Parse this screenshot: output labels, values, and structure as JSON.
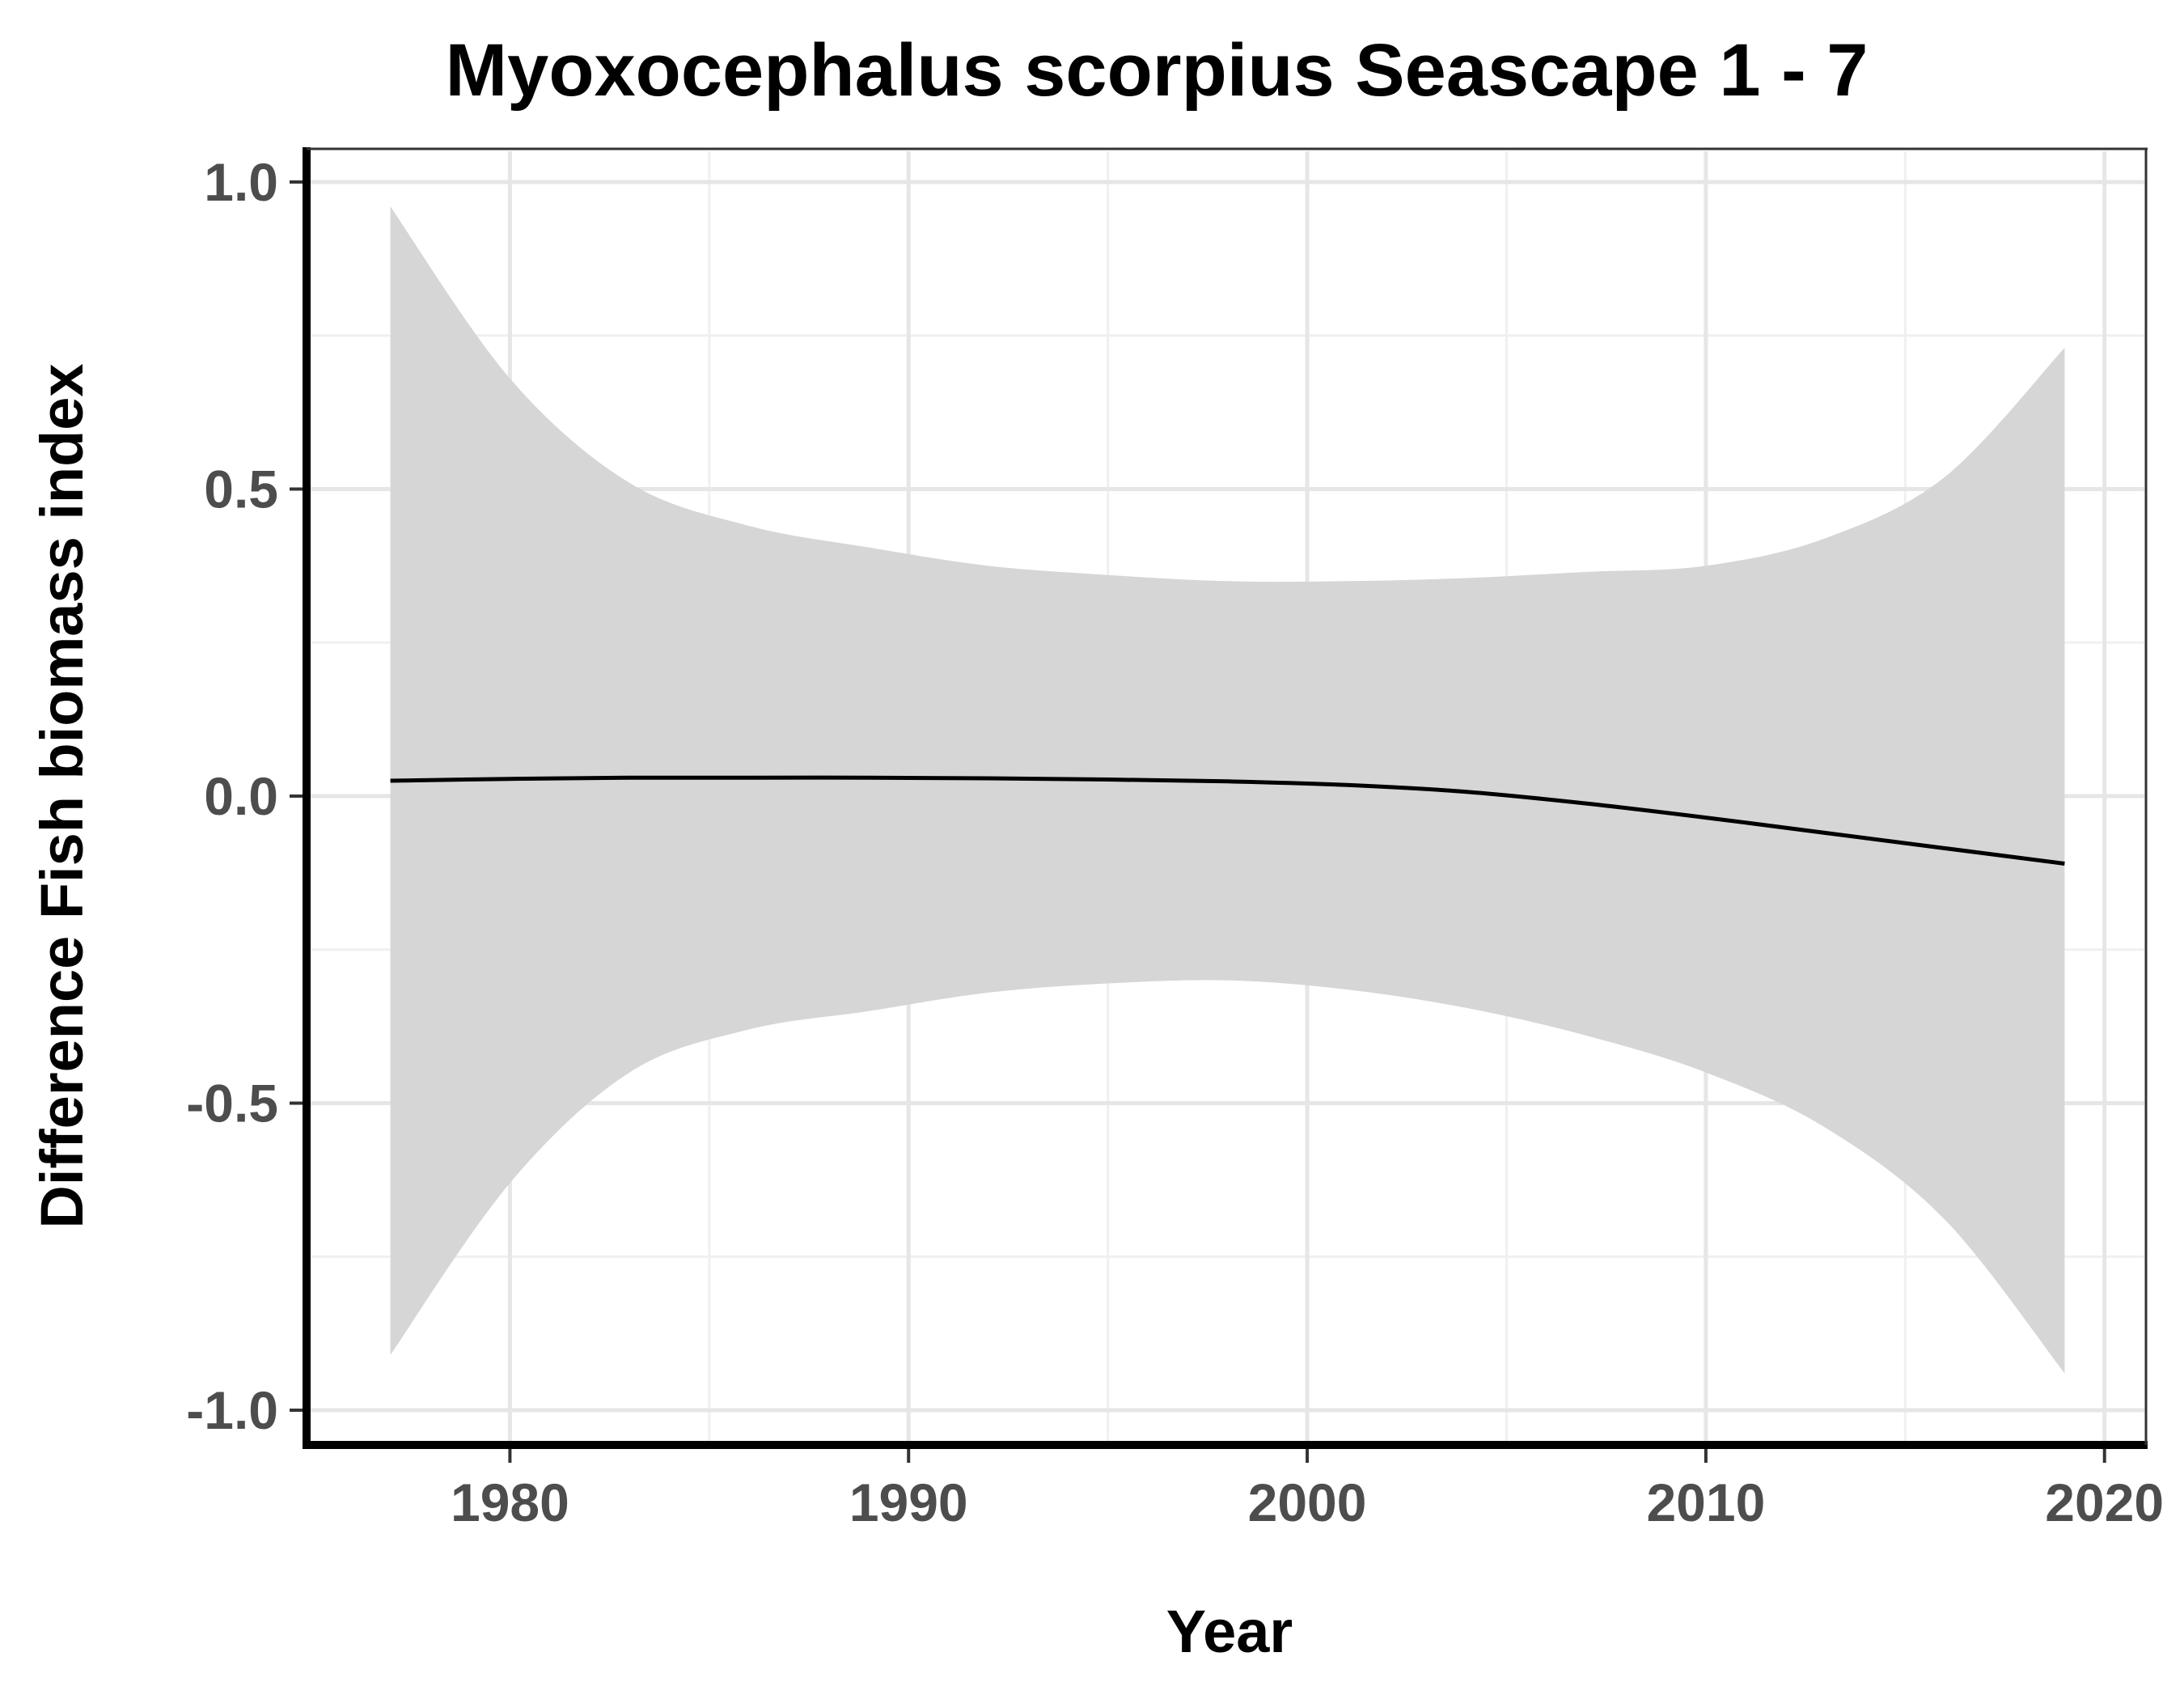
{
  "chart_data": {
    "type": "line",
    "title": "Myoxocephalus scorpius Seascape 1 - 7",
    "xlabel": "Year",
    "ylabel": "Difference Fish biomass index",
    "xlim": [
      1975,
      2021
    ],
    "ylim": [
      -1.05,
      1.05
    ],
    "x_ticks": [
      1980,
      1990,
      2000,
      2010,
      2020
    ],
    "x_tick_labels": [
      "1980",
      "1990",
      "2000",
      "2010",
      "2020"
    ],
    "y_ticks": [
      1.0,
      0.5,
      0.0,
      -0.5,
      -1.0
    ],
    "y_tick_labels": [
      "1.0",
      "0.5",
      "0.0",
      "-0.5",
      "-1.0"
    ],
    "grid": true,
    "legend": "none",
    "colors": {
      "line": "#000000",
      "ribbon": "#d6d6d6",
      "grid_major": "#e6e6e6",
      "grid_minor": "#f0f0f0",
      "axis": "#000000",
      "tick_label": "#4d4d4d"
    },
    "series": [
      {
        "x": [
          1977,
          1980,
          1983,
          1986,
          1989,
          1992,
          1995,
          1998,
          2001,
          2004,
          2007,
          2010,
          2013,
          2016,
          2019
        ],
        "y": [
          0.025,
          0.028,
          0.03,
          0.03,
          0.03,
          0.029,
          0.027,
          0.024,
          0.018,
          0.007,
          -0.012,
          -0.035,
          -0.06,
          -0.085,
          -0.11
        ],
        "lower": [
          -0.91,
          -0.63,
          -0.45,
          -0.38,
          -0.35,
          -0.32,
          -0.305,
          -0.3,
          -0.315,
          -0.345,
          -0.39,
          -0.45,
          -0.54,
          -0.69,
          -0.94
        ],
        "upper": [
          0.96,
          0.68,
          0.51,
          0.44,
          0.405,
          0.375,
          0.36,
          0.35,
          0.35,
          0.355,
          0.365,
          0.375,
          0.42,
          0.52,
          0.73
        ]
      }
    ]
  }
}
